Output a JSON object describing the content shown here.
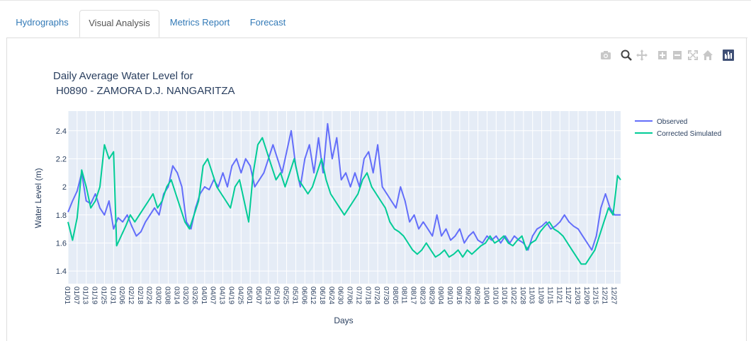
{
  "tabs": [
    {
      "label": "Hydrographs",
      "active": false
    },
    {
      "label": "Visual Analysis",
      "active": true
    },
    {
      "label": "Metrics Report",
      "active": false
    },
    {
      "label": "Forecast",
      "active": false
    }
  ],
  "toolbar": [
    "camera-icon",
    "zoom-icon",
    "pan-icon",
    "zoom-in-icon",
    "zoom-out-icon",
    "autoscale-icon",
    "reset-axes-icon",
    "plotly-logo-icon"
  ],
  "colors": {
    "observed": "#636efa",
    "simulated": "#00cc96",
    "plot_bg": "#e5ecf6",
    "text": "#2a3f5f"
  },
  "chart_data": {
    "type": "line",
    "title": "Daily Average Water Level for",
    "subtitle": "H0890 - ZAMORA D.J. NANGARITZA",
    "xlabel": "Days",
    "ylabel": "Water Level (m)",
    "ylim": [
      1.31,
      2.54
    ],
    "yticks": [
      1.4,
      1.6,
      1.8,
      2,
      2.2,
      2.4
    ],
    "xtick_labels": [
      "01/01",
      "01/07",
      "01/13",
      "01/19",
      "01/25",
      "01/31",
      "02/06",
      "02/12",
      "02/18",
      "02/24",
      "03/02",
      "03/08",
      "03/14",
      "03/20",
      "03/26",
      "04/01",
      "04/07",
      "04/13",
      "04/19",
      "04/25",
      "05/01",
      "05/07",
      "05/13",
      "05/19",
      "05/25",
      "05/31",
      "06/06",
      "06/12",
      "06/18",
      "06/24",
      "06/30",
      "07/06",
      "07/12",
      "07/18",
      "07/24",
      "07/30",
      "08/05",
      "08/11",
      "08/17",
      "08/23",
      "08/29",
      "09/04",
      "09/10",
      "09/16",
      "09/22",
      "09/28",
      "10/04",
      "10/10",
      "10/16",
      "10/22",
      "10/28",
      "11/03",
      "11/09",
      "11/15",
      "11/21",
      "11/27",
      "12/03",
      "12/09",
      "12/15",
      "12/21",
      "12/27"
    ],
    "grid": true,
    "legend": "top-right",
    "series": [
      {
        "name": "Observed",
        "color": "#636efa",
        "points": [
          [
            1,
            1.82
          ],
          [
            4,
            1.9
          ],
          [
            7,
            1.97
          ],
          [
            10,
            2.1
          ],
          [
            13,
            1.9
          ],
          [
            16,
            1.88
          ],
          [
            19,
            1.95
          ],
          [
            22,
            1.85
          ],
          [
            25,
            1.8
          ],
          [
            28,
            1.9
          ],
          [
            31,
            1.7
          ],
          [
            34,
            1.78
          ],
          [
            37,
            1.75
          ],
          [
            40,
            1.8
          ],
          [
            43,
            1.72
          ],
          [
            46,
            1.65
          ],
          [
            49,
            1.68
          ],
          [
            52,
            1.75
          ],
          [
            55,
            1.8
          ],
          [
            58,
            1.85
          ],
          [
            61,
            1.8
          ],
          [
            64,
            1.95
          ],
          [
            67,
            2.0
          ],
          [
            70,
            2.15
          ],
          [
            73,
            2.1
          ],
          [
            76,
            2.0
          ],
          [
            79,
            1.75
          ],
          [
            82,
            1.7
          ],
          [
            85,
            1.85
          ],
          [
            88,
            1.95
          ],
          [
            91,
            2.0
          ],
          [
            94,
            1.98
          ],
          [
            97,
            2.05
          ],
          [
            100,
            2.0
          ],
          [
            103,
            2.1
          ],
          [
            106,
            2.0
          ],
          [
            109,
            2.15
          ],
          [
            112,
            2.2
          ],
          [
            115,
            2.1
          ],
          [
            118,
            2.2
          ],
          [
            121,
            2.15
          ],
          [
            124,
            2.0
          ],
          [
            127,
            2.05
          ],
          [
            130,
            2.1
          ],
          [
            133,
            2.2
          ],
          [
            136,
            2.3
          ],
          [
            139,
            2.2
          ],
          [
            142,
            2.1
          ],
          [
            145,
            2.25
          ],
          [
            148,
            2.4
          ],
          [
            151,
            2.15
          ],
          [
            154,
            2.0
          ],
          [
            157,
            2.2
          ],
          [
            160,
            2.3
          ],
          [
            163,
            2.1
          ],
          [
            166,
            2.35
          ],
          [
            169,
            2.1
          ],
          [
            172,
            2.45
          ],
          [
            175,
            2.2
          ],
          [
            178,
            2.35
          ],
          [
            181,
            2.05
          ],
          [
            184,
            2.1
          ],
          [
            187,
            2.0
          ],
          [
            190,
            2.1
          ],
          [
            193,
            2.0
          ],
          [
            196,
            2.2
          ],
          [
            199,
            2.25
          ],
          [
            202,
            2.1
          ],
          [
            205,
            2.3
          ],
          [
            208,
            2.0
          ],
          [
            211,
            1.95
          ],
          [
            214,
            1.9
          ],
          [
            217,
            1.85
          ],
          [
            220,
            2.0
          ],
          [
            223,
            1.9
          ],
          [
            226,
            1.75
          ],
          [
            229,
            1.8
          ],
          [
            232,
            1.7
          ],
          [
            235,
            1.75
          ],
          [
            238,
            1.7
          ],
          [
            241,
            1.65
          ],
          [
            244,
            1.8
          ],
          [
            247,
            1.65
          ],
          [
            250,
            1.7
          ],
          [
            253,
            1.62
          ],
          [
            256,
            1.65
          ],
          [
            259,
            1.7
          ],
          [
            262,
            1.6
          ],
          [
            265,
            1.65
          ],
          [
            268,
            1.68
          ],
          [
            271,
            1.62
          ],
          [
            274,
            1.6
          ],
          [
            277,
            1.65
          ],
          [
            280,
            1.62
          ],
          [
            283,
            1.65
          ],
          [
            286,
            1.6
          ],
          [
            289,
            1.65
          ],
          [
            292,
            1.6
          ],
          [
            295,
            1.65
          ],
          [
            298,
            1.62
          ],
          [
            301,
            1.6
          ],
          [
            304,
            1.55
          ],
          [
            307,
            1.65
          ],
          [
            310,
            1.7
          ],
          [
            313,
            1.72
          ],
          [
            316,
            1.75
          ],
          [
            319,
            1.7
          ],
          [
            322,
            1.72
          ],
          [
            325,
            1.75
          ],
          [
            328,
            1.8
          ],
          [
            331,
            1.75
          ],
          [
            334,
            1.72
          ],
          [
            337,
            1.7
          ],
          [
            340,
            1.65
          ],
          [
            343,
            1.6
          ],
          [
            346,
            1.55
          ],
          [
            349,
            1.65
          ],
          [
            352,
            1.85
          ],
          [
            355,
            1.95
          ],
          [
            358,
            1.85
          ],
          [
            361,
            1.8
          ],
          [
            365,
            1.8
          ]
        ]
      },
      {
        "name": "Corrected Simulated",
        "color": "#00cc96",
        "points": [
          [
            1,
            1.75
          ],
          [
            4,
            1.62
          ],
          [
            7,
            1.78
          ],
          [
            10,
            2.12
          ],
          [
            13,
            2.0
          ],
          [
            16,
            1.85
          ],
          [
            19,
            1.9
          ],
          [
            22,
            2.0
          ],
          [
            25,
            2.3
          ],
          [
            28,
            2.2
          ],
          [
            31,
            2.25
          ],
          [
            33,
            1.58
          ],
          [
            36,
            1.65
          ],
          [
            39,
            1.72
          ],
          [
            42,
            1.8
          ],
          [
            45,
            1.75
          ],
          [
            48,
            1.8
          ],
          [
            51,
            1.85
          ],
          [
            54,
            1.9
          ],
          [
            57,
            1.95
          ],
          [
            60,
            1.85
          ],
          [
            63,
            1.9
          ],
          [
            66,
            2.0
          ],
          [
            69,
            2.05
          ],
          [
            72,
            1.95
          ],
          [
            75,
            1.85
          ],
          [
            78,
            1.75
          ],
          [
            81,
            1.7
          ],
          [
            84,
            1.8
          ],
          [
            87,
            1.9
          ],
          [
            90,
            2.15
          ],
          [
            93,
            2.2
          ],
          [
            96,
            2.1
          ],
          [
            99,
            2.0
          ],
          [
            102,
            1.95
          ],
          [
            105,
            1.9
          ],
          [
            108,
            1.85
          ],
          [
            111,
            2.0
          ],
          [
            114,
            2.05
          ],
          [
            117,
            1.9
          ],
          [
            120,
            1.75
          ],
          [
            123,
            2.1
          ],
          [
            126,
            2.3
          ],
          [
            129,
            2.35
          ],
          [
            132,
            2.25
          ],
          [
            135,
            2.15
          ],
          [
            138,
            2.05
          ],
          [
            141,
            2.1
          ],
          [
            144,
            2.0
          ],
          [
            147,
            2.1
          ],
          [
            150,
            2.2
          ],
          [
            153,
            2.05
          ],
          [
            156,
            2.0
          ],
          [
            159,
            1.95
          ],
          [
            162,
            2.0
          ],
          [
            165,
            2.1
          ],
          [
            168,
            2.2
          ],
          [
            171,
            2.05
          ],
          [
            174,
            1.95
          ],
          [
            177,
            1.9
          ],
          [
            180,
            1.85
          ],
          [
            183,
            1.8
          ],
          [
            186,
            1.85
          ],
          [
            189,
            1.9
          ],
          [
            192,
            1.95
          ],
          [
            195,
            2.05
          ],
          [
            198,
            2.1
          ],
          [
            201,
            2.0
          ],
          [
            204,
            1.95
          ],
          [
            207,
            1.9
          ],
          [
            210,
            1.85
          ],
          [
            213,
            1.75
          ],
          [
            216,
            1.7
          ],
          [
            219,
            1.68
          ],
          [
            222,
            1.65
          ],
          [
            225,
            1.6
          ],
          [
            228,
            1.55
          ],
          [
            231,
            1.52
          ],
          [
            234,
            1.55
          ],
          [
            237,
            1.6
          ],
          [
            240,
            1.55
          ],
          [
            243,
            1.5
          ],
          [
            246,
            1.52
          ],
          [
            249,
            1.55
          ],
          [
            252,
            1.5
          ],
          [
            255,
            1.52
          ],
          [
            258,
            1.55
          ],
          [
            261,
            1.5
          ],
          [
            264,
            1.55
          ],
          [
            267,
            1.52
          ],
          [
            270,
            1.55
          ],
          [
            273,
            1.58
          ],
          [
            276,
            1.6
          ],
          [
            279,
            1.65
          ],
          [
            282,
            1.6
          ],
          [
            285,
            1.62
          ],
          [
            288,
            1.65
          ],
          [
            291,
            1.6
          ],
          [
            294,
            1.58
          ],
          [
            297,
            1.62
          ],
          [
            300,
            1.65
          ],
          [
            303,
            1.55
          ],
          [
            306,
            1.6
          ],
          [
            309,
            1.62
          ],
          [
            312,
            1.68
          ],
          [
            315,
            1.72
          ],
          [
            318,
            1.75
          ],
          [
            321,
            1.7
          ],
          [
            324,
            1.68
          ],
          [
            327,
            1.65
          ],
          [
            330,
            1.6
          ],
          [
            333,
            1.55
          ],
          [
            336,
            1.5
          ],
          [
            339,
            1.45
          ],
          [
            342,
            1.45
          ],
          [
            345,
            1.5
          ],
          [
            348,
            1.55
          ],
          [
            351,
            1.65
          ],
          [
            354,
            1.75
          ],
          [
            357,
            1.85
          ],
          [
            360,
            1.8
          ],
          [
            363,
            2.08
          ],
          [
            365,
            2.05
          ]
        ]
      }
    ]
  }
}
